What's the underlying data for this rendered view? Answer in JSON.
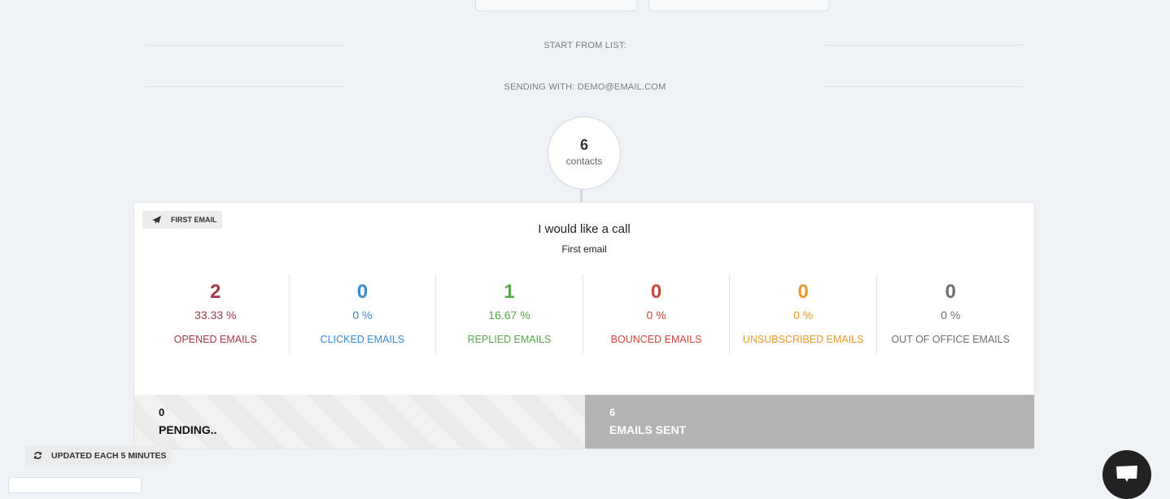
{
  "header": {
    "start_from_list": "START FROM LIST:",
    "sending_with": "SENDING WITH: DEMO@EMAIL.COM"
  },
  "contacts": {
    "count": "6",
    "label": "contacts"
  },
  "step": {
    "tag": "FIRST EMAIL",
    "subject": "I would like a call",
    "name": "First email",
    "stats": [
      {
        "value": "2",
        "percent": "33.33 %",
        "label": "OPENED EMAILS",
        "color": "#a3394a"
      },
      {
        "value": "0",
        "percent": "0 %",
        "label": "CLICKED EMAILS",
        "color": "#3a8bd4"
      },
      {
        "value": "1",
        "percent": "16.67 %",
        "label": "REPLIED EMAILS",
        "color": "#5aa64f"
      },
      {
        "value": "0",
        "percent": "0 %",
        "label": "BOUNCED EMAILS",
        "color": "#d0453b"
      },
      {
        "value": "0",
        "percent": "0 %",
        "label": "UNSUBSCRIBED EMAILS",
        "color": "#e89a2a"
      },
      {
        "value": "0",
        "percent": "0 %",
        "label": "OUT OF OFFICE EMAILS",
        "color": "#6b7075"
      }
    ],
    "pending": {
      "count": "0",
      "label": "PENDING.."
    },
    "sent": {
      "count": "6",
      "label": "EMAILS SENT"
    }
  },
  "footer": {
    "updated": "UPDATED EACH 5 MINUTES"
  }
}
